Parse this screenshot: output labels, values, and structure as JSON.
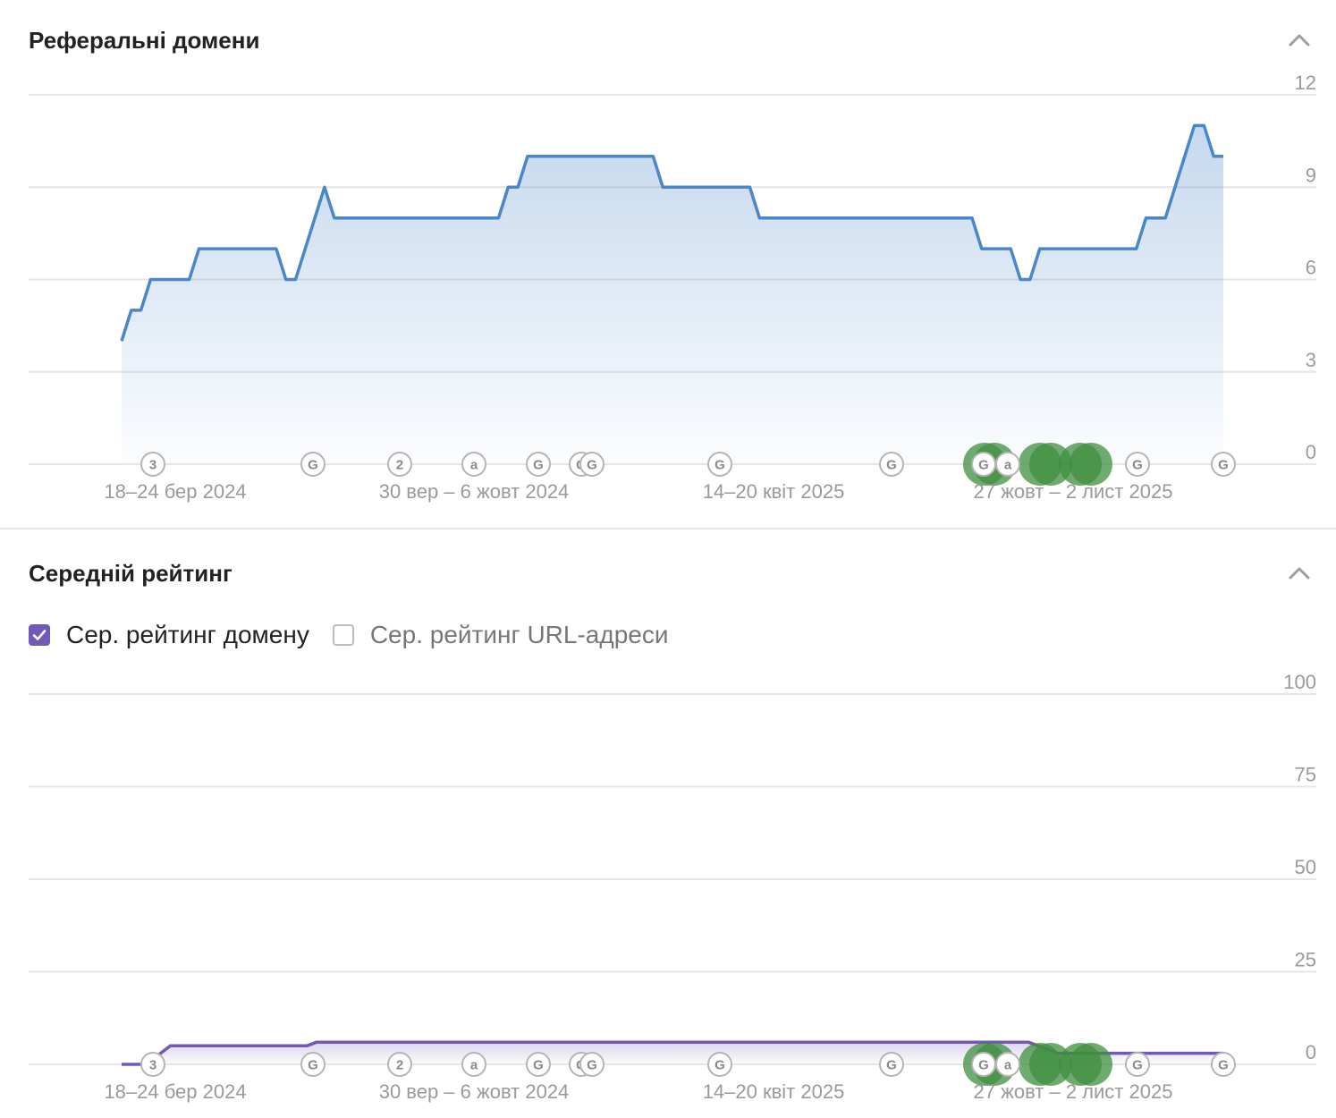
{
  "sections": [
    {
      "title": "Реферальні домени",
      "collapse_icon": "chevron-up-icon"
    },
    {
      "title": "Середній рейтинг",
      "collapse_icon": "chevron-up-icon",
      "legend": [
        {
          "label": "Сер. рейтинг домену",
          "checked": true,
          "color": "#7259b8"
        },
        {
          "label": "Сер. рейтинг URL-адреси",
          "checked": false
        }
      ]
    }
  ],
  "annotation_markers": [
    {
      "label": "3",
      "x": 171
    },
    {
      "label": "G",
      "x": 350
    },
    {
      "label": "2",
      "x": 447
    },
    {
      "label": "a",
      "x": 530
    },
    {
      "label": "G",
      "x": 602
    },
    {
      "label": "G",
      "x": 650
    },
    {
      "label": "G",
      "x": 662
    },
    {
      "label": "G",
      "x": 805
    },
    {
      "label": "G",
      "x": 997
    },
    {
      "label": "G",
      "x": 1100
    },
    {
      "label": "a",
      "x": 1127
    },
    {
      "label": "G",
      "x": 1272
    },
    {
      "label": "G",
      "x": 1368
    }
  ],
  "green_clusters": [
    1101,
    1112,
    1163,
    1175,
    1208,
    1220
  ],
  "chart_data": [
    {
      "type": "area",
      "xlabels": [
        "18–24 бер 2024",
        "30 вер – 6 жовт 2024",
        "14–20 квіт 2025",
        "27 жовт – 2 лист 2025"
      ],
      "yticks": [
        0,
        3,
        6,
        9,
        12
      ],
      "ylim": [
        0,
        12
      ],
      "grid": true,
      "color": "#4a86c8",
      "series": [
        {
          "values": [
            4,
            5,
            5,
            6,
            6,
            6,
            6,
            6,
            7,
            7,
            7,
            7,
            7,
            7,
            7,
            7,
            7,
            6,
            6,
            7,
            8,
            9,
            8,
            8,
            8,
            8,
            8,
            8,
            8,
            8,
            8,
            8,
            8,
            8,
            8,
            8,
            8,
            8,
            8,
            8,
            9,
            9,
            10,
            10,
            10,
            10,
            10,
            10,
            10,
            10,
            10,
            10,
            10,
            10,
            10,
            10,
            9,
            9,
            9,
            9,
            9,
            9,
            9,
            9,
            9,
            9,
            8,
            8,
            8,
            8,
            8,
            8,
            8,
            8,
            8,
            8,
            8,
            8,
            8,
            8,
            8,
            8,
            8,
            8,
            8,
            8,
            8,
            8,
            8,
            7,
            7,
            7,
            7,
            6,
            6,
            7,
            7,
            7,
            7,
            7,
            7,
            7,
            7,
            7,
            7,
            7,
            8,
            8,
            8,
            9,
            10,
            11,
            11,
            10,
            10
          ]
        }
      ]
    },
    {
      "type": "area",
      "xlabels": [
        "18–24 бер 2024",
        "30 вер – 6 жовт 2024",
        "14–20 квіт 2025",
        "27 жовт – 2 лист 2025"
      ],
      "yticks": [
        0,
        25,
        50,
        75,
        100
      ],
      "ylim": [
        0,
        100
      ],
      "grid": true,
      "color": "#7259b8",
      "series": [
        {
          "name": "Сер. рейтинг домену",
          "values": [
            0,
            0,
            0,
            1,
            3,
            5,
            5,
            5,
            5,
            5,
            5,
            5,
            5,
            5,
            5,
            5,
            5,
            5,
            5,
            5,
            6,
            6,
            6,
            6,
            6,
            6,
            6,
            6,
            6,
            6,
            6,
            6,
            6,
            6,
            6,
            6,
            6,
            6,
            6,
            6,
            6,
            6,
            6,
            6,
            6,
            6,
            6,
            6,
            6,
            6,
            6,
            6,
            6,
            6,
            6,
            6,
            6,
            6,
            6,
            6,
            6,
            6,
            6,
            6,
            6,
            6,
            6,
            6,
            6,
            6,
            6,
            6,
            6,
            6,
            6,
            6,
            6,
            6,
            6,
            6,
            6,
            6,
            6,
            6,
            6,
            6,
            6,
            6,
            6,
            6,
            6,
            6,
            6,
            6,
            5,
            4,
            3,
            3,
            3,
            3,
            3,
            3,
            3,
            3,
            3,
            3,
            3,
            3,
            3,
            3,
            3,
            3,
            3,
            3
          ]
        }
      ]
    }
  ]
}
